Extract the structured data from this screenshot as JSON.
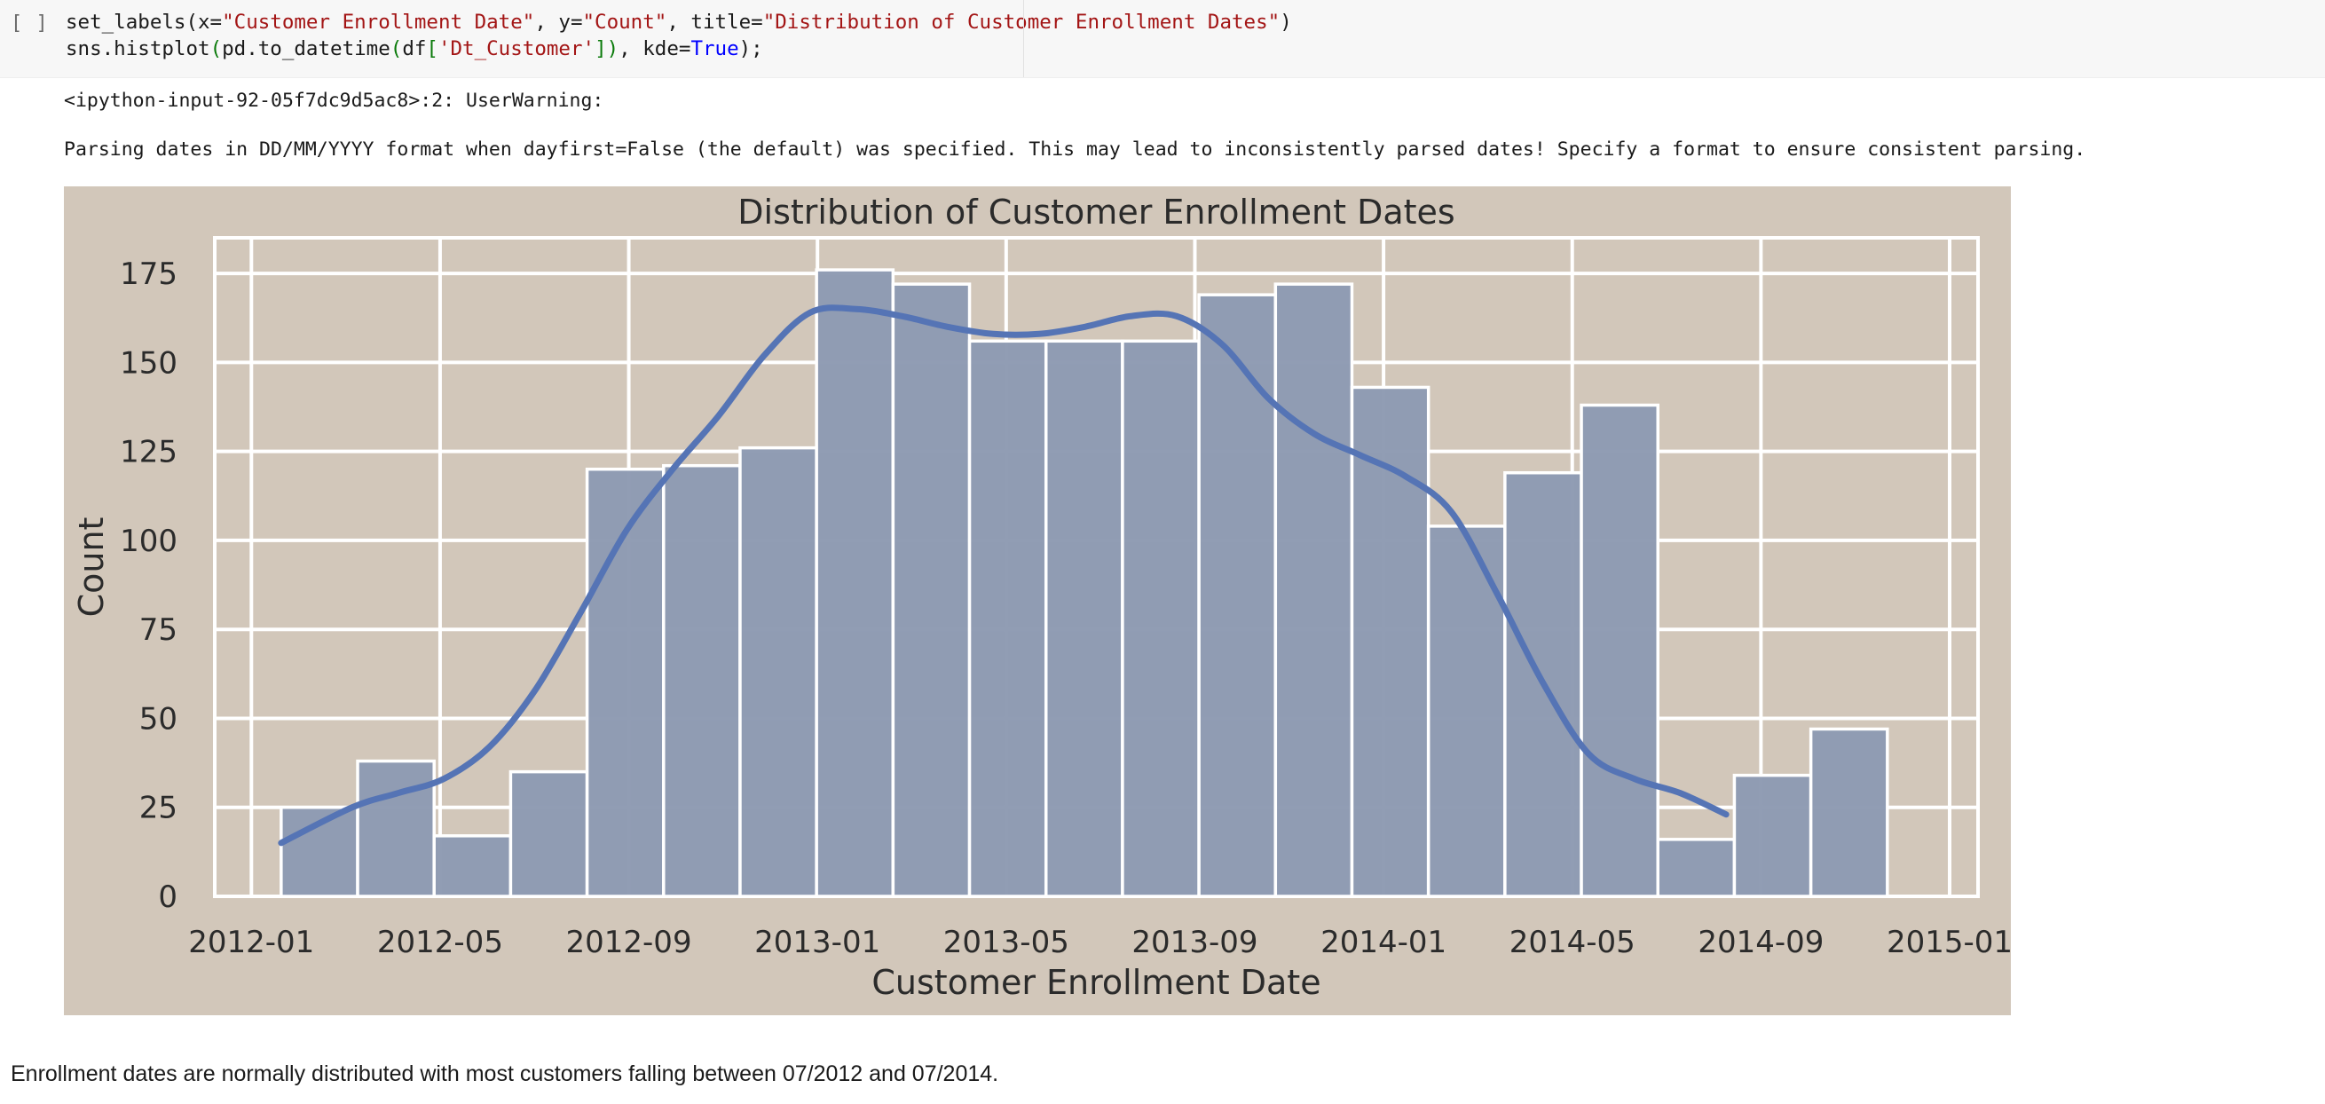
{
  "cell": {
    "run_indicator": "[ ]",
    "code_line1": {
      "p1": "set_labels",
      "p2": "(",
      "p3": "x=",
      "p4": "\"Customer Enrollment Date\"",
      "p5": ", y=",
      "p6": "\"Count\"",
      "p7": ", title=",
      "p8": "\"Distribution of Customer Enrollment Dates\"",
      "p9": ")"
    },
    "code_line2": {
      "p1": "sns.histplot",
      "p2": "(",
      "p3": "pd.to_datetime",
      "p4": "(",
      "p5": "df",
      "p6": "[",
      "p7": "'Dt_Customer'",
      "p8": "]",
      "p9": ")",
      "p10": ", kde=",
      "p11": "True",
      "p12": ");"
    }
  },
  "output": {
    "warning_header": "<ipython-input-92-05f7dc9d5ac8>:2: UserWarning:",
    "warning_body": "Parsing dates in DD/MM/YYYY format when dayfirst=False (the default) was specified. This may lead to inconsistently parsed dates! Specify a format to ensure consistent parsing."
  },
  "colors": {
    "figure_background": "#d2c7ba",
    "bar_fill": "#8f9bb3",
    "bar_edge": "#ffffff",
    "kde_line": "#5574b5",
    "grid": "#ffffff",
    "text": "#2b2b2b"
  },
  "chart_data": {
    "type": "bar",
    "title": "Distribution of Customer Enrollment Dates",
    "xlabel": "Customer Enrollment Date",
    "ylabel": "Count",
    "x_tick_labels": [
      "2012-01",
      "2012-05",
      "2012-09",
      "2013-01",
      "2013-05",
      "2013-09",
      "2014-01",
      "2014-05",
      "2014-09",
      "2015-01"
    ],
    "y_ticks": [
      0,
      25,
      50,
      75,
      100,
      125,
      150,
      175
    ],
    "ylim": [
      0,
      185
    ],
    "grid": true,
    "bins_start_month_offset": 1.45,
    "bin_width_months": 1.67,
    "values": [
      25,
      38,
      17,
      35,
      120,
      121,
      126,
      176,
      172,
      156,
      156,
      156,
      169,
      172,
      143,
      104,
      119,
      138,
      16,
      34,
      47
    ],
    "kde": {
      "x_month_offset": [
        1.45,
        3.0,
        4.0,
        5.0,
        6.0,
        7.0,
        8.0,
        9.0,
        10.0,
        11.0,
        12.0,
        13.0,
        14.0,
        15.0,
        16.0,
        17.0,
        18.0,
        19.0,
        20.0,
        21.0,
        22.0,
        23.0,
        24.0,
        25.0,
        26.0,
        27.0,
        28.0,
        29.0,
        30.0,
        31.0,
        32.0,
        33.0,
        34.0,
        35.0,
        36.4
      ],
      "y": [
        15,
        25,
        29,
        33,
        42,
        58,
        80,
        103,
        120,
        135,
        152,
        164,
        165,
        163,
        160,
        158,
        158,
        160,
        163,
        163,
        155,
        140,
        130,
        124,
        118,
        108,
        85,
        60,
        40,
        33,
        29,
        23,
        0,
        0,
        0
      ]
    }
  },
  "markdown": {
    "text": "Enrollment dates are normally distributed with most customers falling between 07/2012 and 07/2014."
  }
}
